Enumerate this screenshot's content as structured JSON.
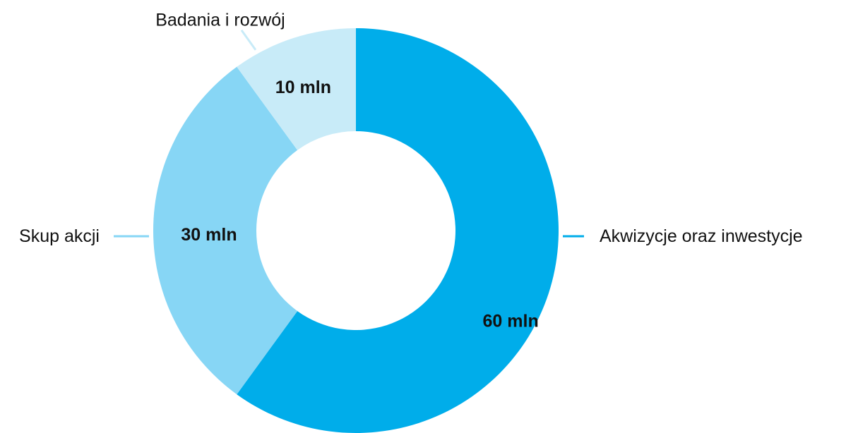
{
  "chart_data": {
    "type": "pie",
    "variant": "donut",
    "categories": [
      "Akwizycje oraz inwestycje",
      "Skup akcji",
      "Badania i rozwój"
    ],
    "values": [
      60,
      30,
      10
    ],
    "data_labels": [
      "60 mln",
      "30 mln",
      "10 mln"
    ],
    "colors": [
      "#00adea",
      "#87d6f5",
      "#c8ebf8"
    ],
    "start_angle_deg": 0,
    "direction": "clockwise",
    "legend": "none",
    "category_labels": "outside-with-leader-lines"
  }
}
